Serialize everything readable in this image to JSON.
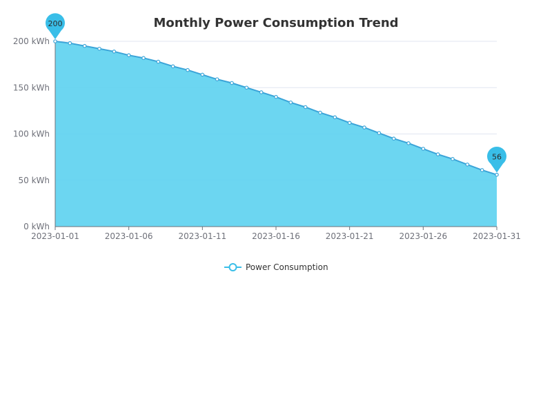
{
  "chart_data": {
    "type": "area",
    "title": "Monthly Power Consumption Trend",
    "x": [
      "2023-01-01",
      "2023-01-02",
      "2023-01-03",
      "2023-01-04",
      "2023-01-05",
      "2023-01-06",
      "2023-01-07",
      "2023-01-08",
      "2023-01-09",
      "2023-01-10",
      "2023-01-11",
      "2023-01-12",
      "2023-01-13",
      "2023-01-14",
      "2023-01-15",
      "2023-01-16",
      "2023-01-17",
      "2023-01-18",
      "2023-01-19",
      "2023-01-20",
      "2023-01-21",
      "2023-01-22",
      "2023-01-23",
      "2023-01-24",
      "2023-01-25",
      "2023-01-26",
      "2023-01-27",
      "2023-01-28",
      "2023-01-29",
      "2023-01-30",
      "2023-01-31"
    ],
    "x_tick_labels": [
      "2023-01-01",
      "2023-01-06",
      "2023-01-11",
      "2023-01-16",
      "2023-01-21",
      "2023-01-26",
      "2023-01-31"
    ],
    "series": [
      {
        "name": "Power Consumption",
        "values": [
          200,
          198,
          195,
          192,
          189,
          185,
          182,
          178,
          173,
          169,
          164,
          159,
          155,
          150,
          145,
          140,
          134,
          129,
          123,
          118,
          112,
          107,
          101,
          95,
          90,
          84,
          78,
          73,
          67,
          61,
          56
        ]
      }
    ],
    "ylim": [
      0,
      200
    ],
    "y_ticks": [
      0,
      50,
      100,
      150,
      200
    ],
    "y_tick_labels": [
      "0 kWh",
      "50 kWh",
      "100 kWh",
      "150 kWh",
      "200 kWh"
    ],
    "markers": [
      {
        "type": "max",
        "value": 200,
        "label": "200"
      },
      {
        "type": "min",
        "value": 56,
        "label": "56"
      }
    ],
    "legend": {
      "position": "bottom-center",
      "label": "Power Consumption"
    },
    "grid": true,
    "colors": {
      "line": "#3BA4D8",
      "area": "#5CD1EF",
      "marker_pin": "#39BEE8",
      "point_fill": "#ffffff",
      "text": "#333333",
      "axis": "#6E7079",
      "grid": "#E0E6F1"
    }
  }
}
